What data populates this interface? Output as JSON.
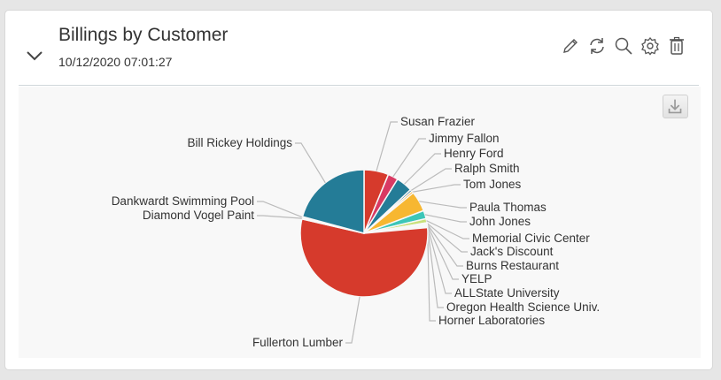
{
  "widget": {
    "title": "Billings by Customer",
    "timestamp": "10/12/2020 07:01:27",
    "toolbar": [
      {
        "icon": "pencil-icon",
        "label": "Edit"
      },
      {
        "icon": "refresh-icon",
        "label": "Refresh"
      },
      {
        "icon": "search-icon",
        "label": "Search"
      },
      {
        "icon": "gear-icon",
        "label": "Settings"
      },
      {
        "icon": "trash-icon",
        "label": "Delete"
      }
    ],
    "download_icon": "download-icon"
  },
  "chart_data": {
    "type": "pie",
    "title": "Billings by Customer",
    "legend": "none (outside data labels with leader lines)",
    "slices": [
      {
        "label": "Susan Frazier",
        "value": 6.0,
        "color": "#d63a2c"
      },
      {
        "label": "Jimmy Fallon",
        "value": 2.5,
        "color": "#d93a63"
      },
      {
        "label": "Henry Ford",
        "value": 4.0,
        "color": "#247c97"
      },
      {
        "label": "Ralph Smith",
        "value": 0.5,
        "color": "#2d6e8c"
      },
      {
        "label": "Tom Jones",
        "value": 0.5,
        "color": "#f6a623"
      },
      {
        "label": "Paula Thomas",
        "value": 5.0,
        "color": "#f7b731"
      },
      {
        "label": "John Jones",
        "value": 2.0,
        "color": "#3cc6b8"
      },
      {
        "label": "Memorial Civic Center",
        "value": 1.0,
        "color": "#c9e07a"
      },
      {
        "label": "Jack's Discount",
        "value": 0.2,
        "color": "#d63a2c"
      },
      {
        "label": "Burns Restaurant",
        "value": 0.2,
        "color": "#d93a63"
      },
      {
        "label": "YELP",
        "value": 0.2,
        "color": "#247c97"
      },
      {
        "label": "ALLState University",
        "value": 0.2,
        "color": "#f7b731"
      },
      {
        "label": "Oregon Health Science Univ.",
        "value": 0.2,
        "color": "#3cc6b8"
      },
      {
        "label": "Horner Laboratories",
        "value": 0.2,
        "color": "#c9e07a"
      },
      {
        "label": "Fullerton Lumber",
        "value": 53.0,
        "color": "#d63a2c"
      },
      {
        "label": "Diamond Vogel Paint",
        "value": 0.3,
        "color": "#d93a63"
      },
      {
        "label": "Dankwardt Swimming Pool",
        "value": 0.3,
        "color": "#f7b731"
      },
      {
        "label": "Bill Rickey Holdings",
        "value": 20.0,
        "color": "#247c97"
      }
    ]
  }
}
